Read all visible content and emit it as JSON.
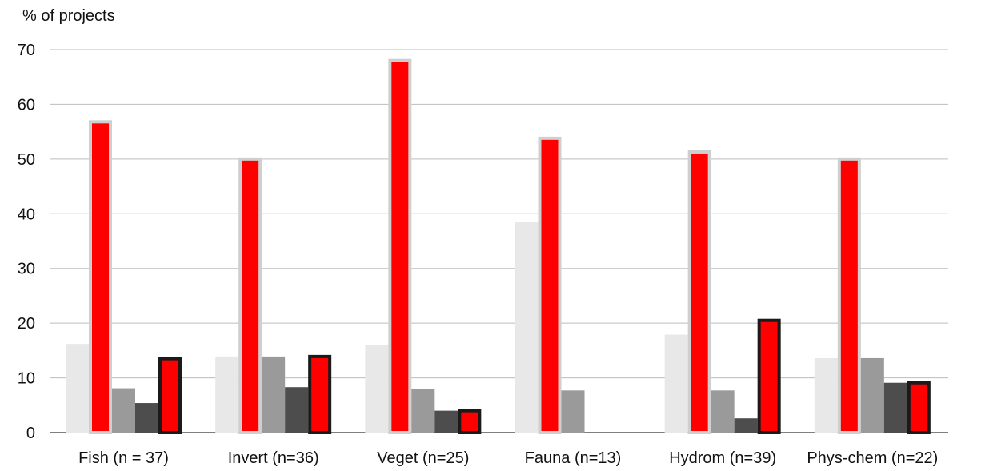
{
  "chart_data": {
    "type": "bar",
    "ylabel": "% of projects",
    "ylim": [
      0,
      70
    ],
    "yticks": [
      0,
      10,
      20,
      30,
      40,
      50,
      60,
      70
    ],
    "grid": true,
    "categories": [
      "Fish (n = 37)",
      "Invert (n=36)",
      "Veget (n=25)",
      "Fauna (n=13)",
      "Hydrom (n=39)",
      "Phys-chem (n=22)"
    ],
    "series": [
      {
        "values": [
          16.2,
          13.9,
          16.0,
          38.5,
          17.9,
          13.6
        ],
        "color": "#e8e8e8"
      },
      {
        "values": [
          56.8,
          50.0,
          68.0,
          53.8,
          51.3,
          50.0
        ],
        "color": "#ff0000"
      },
      {
        "values": [
          8.1,
          13.9,
          8.0,
          7.7,
          7.7,
          13.6
        ],
        "color": "#9a9a9a"
      },
      {
        "values": [
          5.4,
          8.3,
          4.0,
          0,
          2.6,
          9.1
        ],
        "color": "#4d4d4d"
      },
      {
        "values": [
          13.5,
          13.9,
          4.0,
          0,
          20.5,
          9.1
        ],
        "color": "#ff0000"
      }
    ]
  }
}
